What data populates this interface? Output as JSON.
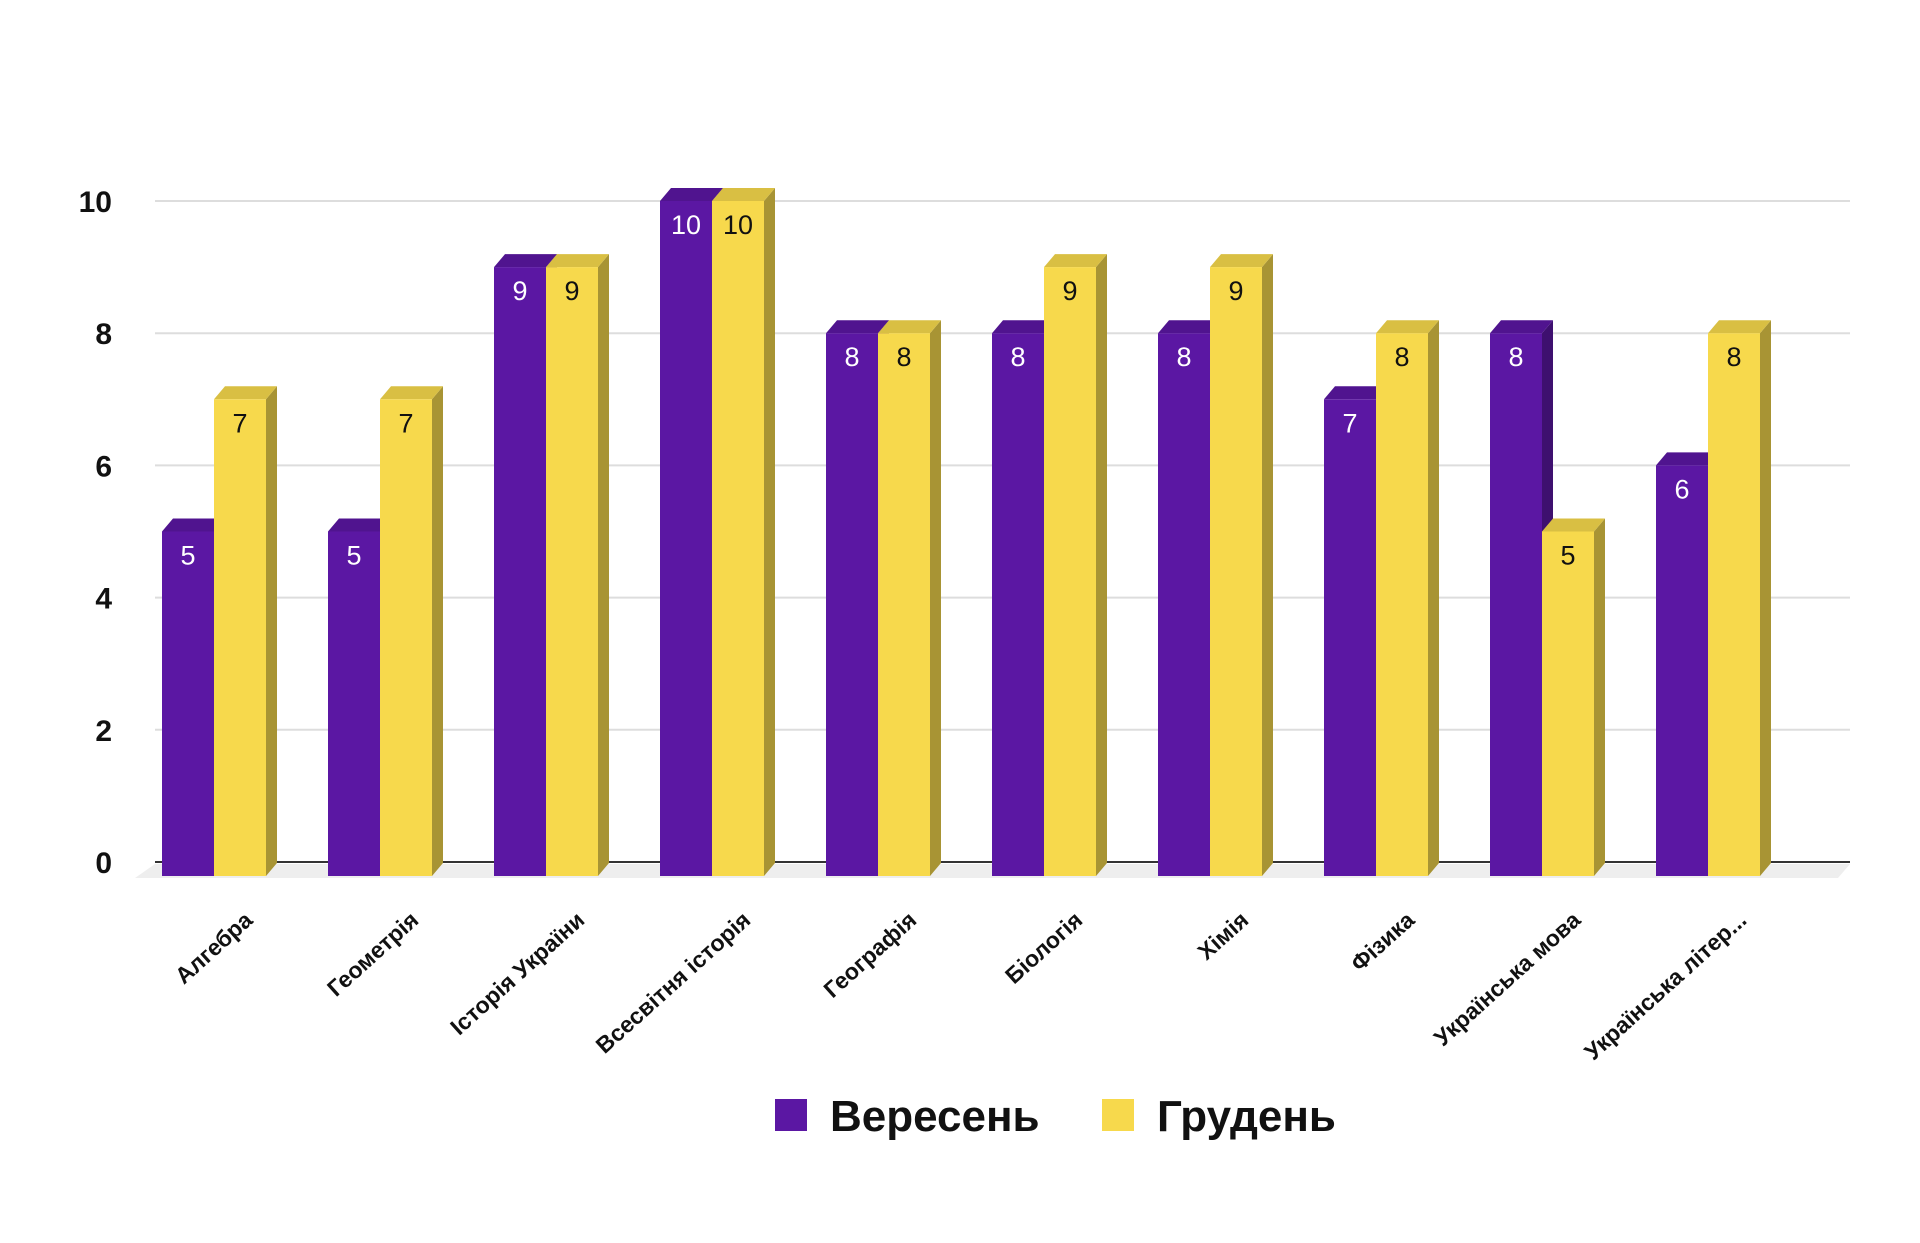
{
  "chart_data": {
    "type": "bar",
    "title": "",
    "xlabel": "",
    "ylabel": "",
    "ylim": [
      0,
      10
    ],
    "yticks": [
      0,
      2,
      4,
      6,
      8,
      10
    ],
    "grid": true,
    "style": "3d-columns",
    "legend_position": "bottom",
    "categories": [
      "Алгебра",
      "Геометрія",
      "Історія України",
      "Всесвітня історія",
      "Географія",
      "Біологія",
      "Хімія",
      "Фізика",
      "Українська мова",
      "Українська літер..."
    ],
    "series": [
      {
        "name": "Вересень",
        "color": "#5b17a3",
        "label_color": "#ffffff",
        "values": [
          5,
          5,
          9,
          10,
          8,
          8,
          8,
          7,
          8,
          6
        ]
      },
      {
        "name": "Грудень",
        "color": "#f7d94c",
        "label_color": "#111111",
        "values": [
          7,
          7,
          9,
          10,
          8,
          9,
          9,
          8,
          5,
          8
        ]
      }
    ]
  }
}
